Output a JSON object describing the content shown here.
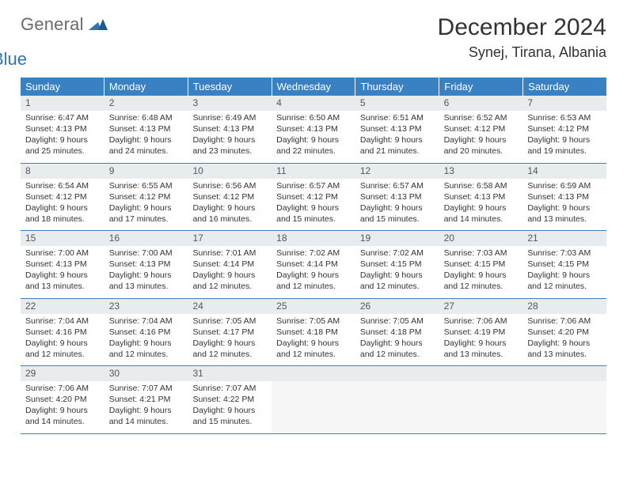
{
  "logo": {
    "text_gray": "General",
    "text_blue": "Blue"
  },
  "title": "December 2024",
  "location": "Synej, Tirana, Albania",
  "colors": {
    "header_bg": "#3a81c4",
    "header_text": "#ffffff",
    "daynum_bg": "#e9ecef",
    "border": "#3a81c4",
    "logo_gray": "#6a6a6a",
    "logo_blue": "#2f74b5"
  },
  "daysOfWeek": [
    "Sunday",
    "Monday",
    "Tuesday",
    "Wednesday",
    "Thursday",
    "Friday",
    "Saturday"
  ],
  "weeks": [
    [
      {
        "n": "1",
        "sr": "Sunrise: 6:47 AM",
        "ss": "Sunset: 4:13 PM",
        "dl1": "Daylight: 9 hours",
        "dl2": "and 25 minutes."
      },
      {
        "n": "2",
        "sr": "Sunrise: 6:48 AM",
        "ss": "Sunset: 4:13 PM",
        "dl1": "Daylight: 9 hours",
        "dl2": "and 24 minutes."
      },
      {
        "n": "3",
        "sr": "Sunrise: 6:49 AM",
        "ss": "Sunset: 4:13 PM",
        "dl1": "Daylight: 9 hours",
        "dl2": "and 23 minutes."
      },
      {
        "n": "4",
        "sr": "Sunrise: 6:50 AM",
        "ss": "Sunset: 4:13 PM",
        "dl1": "Daylight: 9 hours",
        "dl2": "and 22 minutes."
      },
      {
        "n": "5",
        "sr": "Sunrise: 6:51 AM",
        "ss": "Sunset: 4:13 PM",
        "dl1": "Daylight: 9 hours",
        "dl2": "and 21 minutes."
      },
      {
        "n": "6",
        "sr": "Sunrise: 6:52 AM",
        "ss": "Sunset: 4:12 PM",
        "dl1": "Daylight: 9 hours",
        "dl2": "and 20 minutes."
      },
      {
        "n": "7",
        "sr": "Sunrise: 6:53 AM",
        "ss": "Sunset: 4:12 PM",
        "dl1": "Daylight: 9 hours",
        "dl2": "and 19 minutes."
      }
    ],
    [
      {
        "n": "8",
        "sr": "Sunrise: 6:54 AM",
        "ss": "Sunset: 4:12 PM",
        "dl1": "Daylight: 9 hours",
        "dl2": "and 18 minutes."
      },
      {
        "n": "9",
        "sr": "Sunrise: 6:55 AM",
        "ss": "Sunset: 4:12 PM",
        "dl1": "Daylight: 9 hours",
        "dl2": "and 17 minutes."
      },
      {
        "n": "10",
        "sr": "Sunrise: 6:56 AM",
        "ss": "Sunset: 4:12 PM",
        "dl1": "Daylight: 9 hours",
        "dl2": "and 16 minutes."
      },
      {
        "n": "11",
        "sr": "Sunrise: 6:57 AM",
        "ss": "Sunset: 4:12 PM",
        "dl1": "Daylight: 9 hours",
        "dl2": "and 15 minutes."
      },
      {
        "n": "12",
        "sr": "Sunrise: 6:57 AM",
        "ss": "Sunset: 4:13 PM",
        "dl1": "Daylight: 9 hours",
        "dl2": "and 15 minutes."
      },
      {
        "n": "13",
        "sr": "Sunrise: 6:58 AM",
        "ss": "Sunset: 4:13 PM",
        "dl1": "Daylight: 9 hours",
        "dl2": "and 14 minutes."
      },
      {
        "n": "14",
        "sr": "Sunrise: 6:59 AM",
        "ss": "Sunset: 4:13 PM",
        "dl1": "Daylight: 9 hours",
        "dl2": "and 13 minutes."
      }
    ],
    [
      {
        "n": "15",
        "sr": "Sunrise: 7:00 AM",
        "ss": "Sunset: 4:13 PM",
        "dl1": "Daylight: 9 hours",
        "dl2": "and 13 minutes."
      },
      {
        "n": "16",
        "sr": "Sunrise: 7:00 AM",
        "ss": "Sunset: 4:13 PM",
        "dl1": "Daylight: 9 hours",
        "dl2": "and 13 minutes."
      },
      {
        "n": "17",
        "sr": "Sunrise: 7:01 AM",
        "ss": "Sunset: 4:14 PM",
        "dl1": "Daylight: 9 hours",
        "dl2": "and 12 minutes."
      },
      {
        "n": "18",
        "sr": "Sunrise: 7:02 AM",
        "ss": "Sunset: 4:14 PM",
        "dl1": "Daylight: 9 hours",
        "dl2": "and 12 minutes."
      },
      {
        "n": "19",
        "sr": "Sunrise: 7:02 AM",
        "ss": "Sunset: 4:15 PM",
        "dl1": "Daylight: 9 hours",
        "dl2": "and 12 minutes."
      },
      {
        "n": "20",
        "sr": "Sunrise: 7:03 AM",
        "ss": "Sunset: 4:15 PM",
        "dl1": "Daylight: 9 hours",
        "dl2": "and 12 minutes."
      },
      {
        "n": "21",
        "sr": "Sunrise: 7:03 AM",
        "ss": "Sunset: 4:15 PM",
        "dl1": "Daylight: 9 hours",
        "dl2": "and 12 minutes."
      }
    ],
    [
      {
        "n": "22",
        "sr": "Sunrise: 7:04 AM",
        "ss": "Sunset: 4:16 PM",
        "dl1": "Daylight: 9 hours",
        "dl2": "and 12 minutes."
      },
      {
        "n": "23",
        "sr": "Sunrise: 7:04 AM",
        "ss": "Sunset: 4:16 PM",
        "dl1": "Daylight: 9 hours",
        "dl2": "and 12 minutes."
      },
      {
        "n": "24",
        "sr": "Sunrise: 7:05 AM",
        "ss": "Sunset: 4:17 PM",
        "dl1": "Daylight: 9 hours",
        "dl2": "and 12 minutes."
      },
      {
        "n": "25",
        "sr": "Sunrise: 7:05 AM",
        "ss": "Sunset: 4:18 PM",
        "dl1": "Daylight: 9 hours",
        "dl2": "and 12 minutes."
      },
      {
        "n": "26",
        "sr": "Sunrise: 7:05 AM",
        "ss": "Sunset: 4:18 PM",
        "dl1": "Daylight: 9 hours",
        "dl2": "and 12 minutes."
      },
      {
        "n": "27",
        "sr": "Sunrise: 7:06 AM",
        "ss": "Sunset: 4:19 PM",
        "dl1": "Daylight: 9 hours",
        "dl2": "and 13 minutes."
      },
      {
        "n": "28",
        "sr": "Sunrise: 7:06 AM",
        "ss": "Sunset: 4:20 PM",
        "dl1": "Daylight: 9 hours",
        "dl2": "and 13 minutes."
      }
    ],
    [
      {
        "n": "29",
        "sr": "Sunrise: 7:06 AM",
        "ss": "Sunset: 4:20 PM",
        "dl1": "Daylight: 9 hours",
        "dl2": "and 14 minutes."
      },
      {
        "n": "30",
        "sr": "Sunrise: 7:07 AM",
        "ss": "Sunset: 4:21 PM",
        "dl1": "Daylight: 9 hours",
        "dl2": "and 14 minutes."
      },
      {
        "n": "31",
        "sr": "Sunrise: 7:07 AM",
        "ss": "Sunset: 4:22 PM",
        "dl1": "Daylight: 9 hours",
        "dl2": "and 15 minutes."
      },
      null,
      null,
      null,
      null
    ]
  ]
}
